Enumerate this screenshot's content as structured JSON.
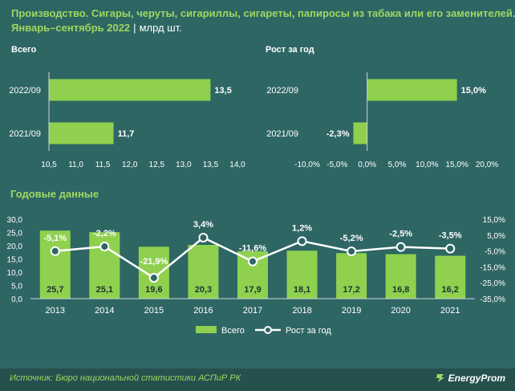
{
  "header": {
    "title": "Производство. Сигары, черуты, сигариллы, сигареты, папиросы из табака или его заменителей.",
    "subtitle": "Январь–сентябрь 2022",
    "units": "млрд шт."
  },
  "chart_data": [
    {
      "type": "bar",
      "orientation": "horizontal",
      "title": "Всего",
      "categories": [
        "2022/09",
        "2021/09"
      ],
      "values": [
        13.5,
        11.7
      ],
      "value_labels": [
        "13,5",
        "11,7"
      ],
      "xlim": [
        10.5,
        14.0
      ],
      "x_ticks": [
        "10,5",
        "11,0",
        "11,5",
        "12,0",
        "12,5",
        "13,0",
        "13,5",
        "14,0"
      ]
    },
    {
      "type": "bar",
      "orientation": "horizontal",
      "title": "Рост за год",
      "categories": [
        "2022/09",
        "2021/09"
      ],
      "values": [
        15.0,
        -2.3
      ],
      "value_labels": [
        "15,0%",
        "-2,3%"
      ],
      "xlim": [
        -10,
        20
      ],
      "x_ticks": [
        "-10,0%",
        "-5,0%",
        "0,0%",
        "5,0%",
        "10,0%",
        "15,0%",
        "20,0%"
      ]
    },
    {
      "type": "bar+line",
      "title": "Годовые данные",
      "categories": [
        "2013",
        "2014",
        "2015",
        "2016",
        "2017",
        "2018",
        "2019",
        "2020",
        "2021"
      ],
      "series": [
        {
          "name": "Всего",
          "type": "bar",
          "axis": "left",
          "values": [
            25.7,
            25.1,
            19.6,
            20.3,
            17.9,
            18.1,
            17.2,
            16.8,
            16.2
          ],
          "labels": [
            "25,7",
            "25,1",
            "19,6",
            "20,3",
            "17,9",
            "18,1",
            "17,2",
            "16,8",
            "16,2"
          ]
        },
        {
          "name": "Рост за год",
          "type": "line",
          "axis": "right",
          "values": [
            -5.1,
            -2.2,
            -21.9,
            3.4,
            -11.6,
            1.2,
            -5.2,
            -2.5,
            -3.5
          ],
          "labels": [
            "-5,1%",
            "-2,2%",
            "-21,9%",
            "3,4%",
            "-11,6%",
            "1,2%",
            "-5,2%",
            "-2,5%",
            "-3,5%"
          ]
        }
      ],
      "ylim_left": [
        0,
        30
      ],
      "y_ticks_left": [
        "0,0",
        "5,0",
        "10,0",
        "15,0",
        "20,0",
        "25,0",
        "30,0"
      ],
      "ylim_right": [
        -35,
        15
      ],
      "y_ticks_right": [
        "-35,0%",
        "-25,0%",
        "-15,0%",
        "-5,0%",
        "5,0%",
        "15,0%"
      ],
      "legend": "bottom-center"
    }
  ],
  "colors": {
    "background": "#2e6664",
    "bar": "#8fd14f",
    "accent_text": "#9ed861",
    "line": "#ffffff",
    "marker_fill": "#2e6664"
  },
  "footer": {
    "source": "Источник: Бюро национальной статистики АСПиР РК",
    "brand": "EnergyProm",
    "brand_icon": "energyprom-logo-icon"
  }
}
